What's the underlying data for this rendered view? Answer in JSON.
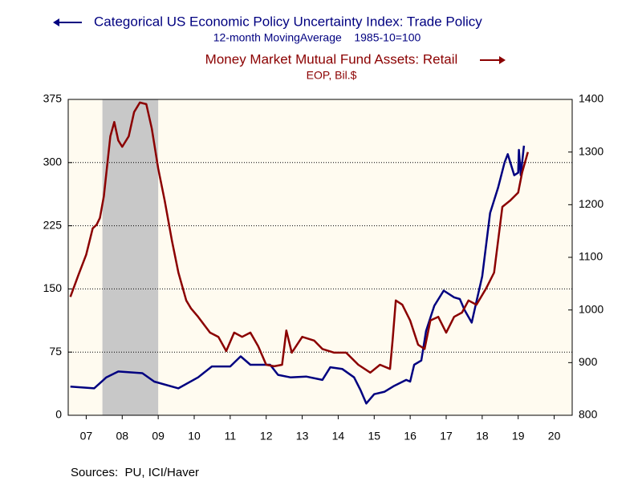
{
  "chart_data": {
    "type": "line",
    "series": [
      {
        "name": "Categorical US Economic Policy Uncertainty Index: Trade Policy",
        "units": "12-month MovingAverage    1985-10=100",
        "color": "#000080",
        "axis": "y",
        "x": [
          2007.06,
          2007.72,
          2008.06,
          2008.39,
          2009.06,
          2009.39,
          2010.06,
          2010.61,
          2010.99,
          2011.5,
          2011.79,
          2012.06,
          2012.61,
          2012.83,
          2013.17,
          2013.61,
          2014.06,
          2014.28,
          2014.61,
          2014.94,
          2015.12,
          2015.28,
          2015.5,
          2015.79,
          2016.06,
          2016.39,
          2016.5,
          2016.61,
          2016.81,
          2016.94,
          2017.17,
          2017.43,
          2017.72,
          2017.88,
          2018.01,
          2018.21,
          2018.34,
          2018.5,
          2018.72,
          2018.94,
          2019.12,
          2019.21,
          2019.39,
          2019.5,
          2019.52,
          2019.57,
          2019.66
        ],
        "values": [
          34,
          32,
          45,
          52,
          50,
          40,
          32,
          45,
          58,
          58,
          70,
          60,
          60,
          48,
          45,
          46,
          42,
          57,
          55,
          45,
          30,
          14,
          25,
          28,
          35,
          42,
          40,
          60,
          65,
          100,
          130,
          148,
          140,
          138,
          125,
          110,
          135,
          165,
          240,
          270,
          300,
          310,
          285,
          288,
          315,
          285,
          320
        ]
      },
      {
        "name": "Money Market Mutual Fund Assets: Retail",
        "units": "EOP, Bil.$",
        "color": "#8b0000",
        "axis": "y2",
        "x": [
          2007.06,
          2007.28,
          2007.5,
          2007.68,
          2007.79,
          2007.88,
          2007.99,
          2008.17,
          2008.28,
          2008.39,
          2008.5,
          2008.68,
          2008.83,
          2008.99,
          2009.17,
          2009.32,
          2009.5,
          2009.68,
          2009.88,
          2010.06,
          2010.28,
          2010.41,
          2010.61,
          2010.94,
          2011.17,
          2011.39,
          2011.61,
          2011.83,
          2012.06,
          2012.28,
          2012.5,
          2012.72,
          2012.94,
          2013.06,
          2013.21,
          2013.5,
          2013.83,
          2014.06,
          2014.39,
          2014.72,
          2015.06,
          2015.39,
          2015.66,
          2015.94,
          2016.01,
          2016.1,
          2016.28,
          2016.5,
          2016.72,
          2016.9,
          2017.06,
          2017.28,
          2017.5,
          2017.72,
          2017.94,
          2018.12,
          2018.34,
          2018.61,
          2018.83,
          2019.06,
          2019.28,
          2019.5,
          2019.61,
          2019.77
        ],
        "values": [
          1025,
          1066,
          1105,
          1155,
          1162,
          1175,
          1216,
          1330,
          1357,
          1322,
          1310,
          1330,
          1376,
          1394,
          1391,
          1345,
          1269,
          1208,
          1132,
          1071,
          1018,
          1003,
          987,
          957,
          949,
          922,
          957,
          949,
          957,
          931,
          896,
          893,
          896,
          961,
          919,
          949,
          942,
          926,
          919,
          919,
          896,
          881,
          896,
          888,
          942,
          1018,
          1010,
          980,
          934,
          926,
          980,
          987,
          957,
          987,
          995,
          1018,
          1010,
          1041,
          1071,
          1196,
          1208,
          1223,
          1261,
          1300
        ]
      }
    ],
    "xlim": [
      2007,
      2021
    ],
    "xticks": [
      {
        "value": 2007.5,
        "label": "07"
      },
      {
        "value": 2008.5,
        "label": "08"
      },
      {
        "value": 2009.5,
        "label": "09"
      },
      {
        "value": 2010.5,
        "label": "10"
      },
      {
        "value": 2011.5,
        "label": "11"
      },
      {
        "value": 2012.5,
        "label": "12"
      },
      {
        "value": 2013.5,
        "label": "13"
      },
      {
        "value": 2014.5,
        "label": "14"
      },
      {
        "value": 2015.5,
        "label": "15"
      },
      {
        "value": 2016.5,
        "label": "16"
      },
      {
        "value": 2017.5,
        "label": "17"
      },
      {
        "value": 2018.5,
        "label": "18"
      },
      {
        "value": 2019.5,
        "label": "19"
      },
      {
        "value": 2020.5,
        "label": "20"
      }
    ],
    "ylim": [
      0,
      375
    ],
    "yticks": [
      0,
      75,
      150,
      225,
      300,
      375
    ],
    "y2lim": [
      800,
      1400
    ],
    "y2ticks": [
      800,
      900,
      1000,
      1100,
      1200,
      1300,
      1400
    ],
    "grid": true,
    "recession": [
      2007.95,
      2009.5
    ],
    "source": "Sources:  PU, ICI/Haver"
  }
}
